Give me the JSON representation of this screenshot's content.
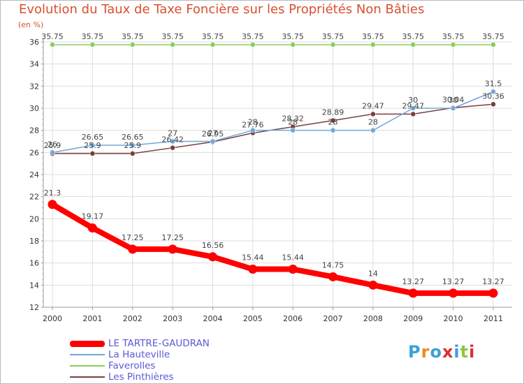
{
  "title": "Evolution du Taux de Taxe Foncière sur les Propriétés Non Bâties",
  "unit_label": "(en %)",
  "chart_data": {
    "type": "line",
    "title": "Evolution du Taux de Taxe Foncière sur les Propriétés Non Bâties",
    "ylabel": "(en %)",
    "xlabel": "",
    "ylim": [
      12,
      36
    ],
    "yticks": [
      12,
      14,
      16,
      18,
      20,
      22,
      24,
      26,
      28,
      30,
      32,
      34,
      36
    ],
    "categories": [
      "2000",
      "2001",
      "2002",
      "2003",
      "2004",
      "2005",
      "2006",
      "2007",
      "2008",
      "2009",
      "2010",
      "2011"
    ],
    "series": [
      {
        "name": "LE TARTRE-GAUDRAN",
        "color": "#ff0000",
        "values": [
          21.3,
          19.17,
          17.25,
          17.25,
          16.56,
          15.44,
          15.44,
          14.75,
          14,
          13.27,
          13.27,
          13.27
        ],
        "labels": [
          "21.3",
          "19.17",
          "17.25",
          "17.25",
          "16.56",
          "15.44",
          "15.44",
          "14.75",
          "14",
          "13.27",
          "13.27",
          "13.27"
        ]
      },
      {
        "name": "La Hauteville",
        "color": "#6fa9dc",
        "values": [
          26,
          26.65,
          26.65,
          27,
          27,
          28,
          28,
          28,
          28,
          30,
          30,
          31.5
        ],
        "labels": [
          "26",
          "26.65",
          "26.65",
          "27",
          "27",
          "28",
          "28",
          "28",
          "28",
          "30",
          "30",
          "31.5"
        ]
      },
      {
        "name": "Faverolles",
        "color": "#8ccd5c",
        "values": [
          35.75,
          35.75,
          35.75,
          35.75,
          35.75,
          35.75,
          35.75,
          35.75,
          35.75,
          35.75,
          35.75,
          35.75
        ],
        "labels": [
          "35.75",
          "35.75",
          "35.75",
          "35.75",
          "35.75",
          "35.75",
          "35.75",
          "35.75",
          "35.75",
          "35.75",
          "35.75",
          "35.75"
        ]
      },
      {
        "name": "Les Pinthières",
        "color": "#7b3f3f",
        "values": [
          25.9,
          25.9,
          25.9,
          26.42,
          26.95,
          27.76,
          28.32,
          28.89,
          29.47,
          29.47,
          30.04,
          30.36
        ],
        "labels": [
          "25.9",
          "25.9",
          "25.9",
          "26.42",
          "26.95",
          "27.76",
          "28.32",
          "28.89",
          "29.47",
          "29.47",
          "30.04",
          "30.36"
        ]
      }
    ]
  },
  "legend": {
    "items": [
      "LE TARTRE-GAUDRAN",
      "La Hauteville",
      "Faverolles",
      "Les Pinthières"
    ]
  },
  "logo": {
    "text": "Proxiti",
    "letters": [
      "P",
      "r",
      "o",
      "x",
      "i",
      "t",
      "i"
    ],
    "colors": [
      "#3aa0d8",
      "#f08a1c",
      "#3aa0d8",
      "#d9302f",
      "#3aa0d8",
      "#8cc63f",
      "#d9302f"
    ]
  }
}
